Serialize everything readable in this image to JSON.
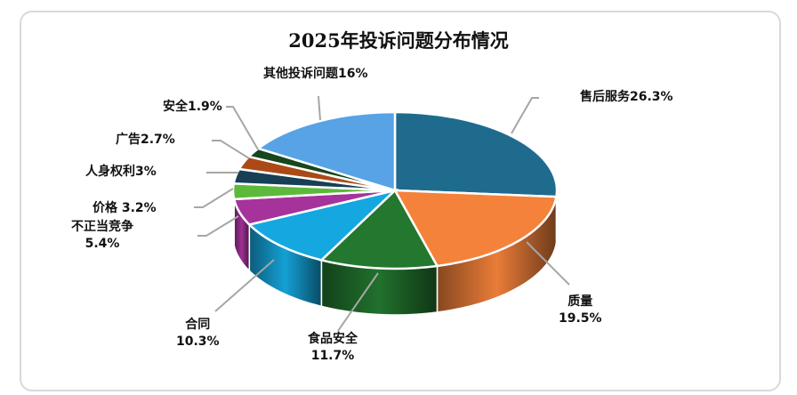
{
  "chart_data": {
    "type": "pie",
    "style": "3d",
    "title": "2025年投诉问题分布情况",
    "slices": [
      {
        "label": "售后服务",
        "value": 26.3,
        "text": "售后服务26.3%",
        "color": "#1f6b8e"
      },
      {
        "label": "质量",
        "value": 19.5,
        "text": "质量\n19.5%",
        "color": "#f5823b"
      },
      {
        "label": "食品安全",
        "value": 11.7,
        "text": "食品安全\n11.7%",
        "color": "#23772f"
      },
      {
        "label": "合同",
        "value": 10.3,
        "text": "合同\n10.3%",
        "color": "#15a8e0"
      },
      {
        "label": "不正当竞争",
        "value": 5.4,
        "text": "不正当竞争\n5.4%",
        "color": "#a5339b"
      },
      {
        "label": "价格",
        "value": 3.2,
        "text": "价格 3.2%",
        "color": "#5db93b"
      },
      {
        "label": "人身权利",
        "value": 3,
        "text": "人身权利3%",
        "color": "#173f56"
      },
      {
        "label": "广告",
        "value": 2.7,
        "text": "广告2.7%",
        "color": "#ab4a17"
      },
      {
        "label": "安全",
        "value": 1.9,
        "text": "安全1.9%",
        "color": "#16461e"
      },
      {
        "label": "其他投诉问题",
        "value": 16,
        "text": "其他投诉问题16%",
        "color": "#58a2e6"
      }
    ],
    "start": "top",
    "direction": "clockwise",
    "legend": "none"
  }
}
